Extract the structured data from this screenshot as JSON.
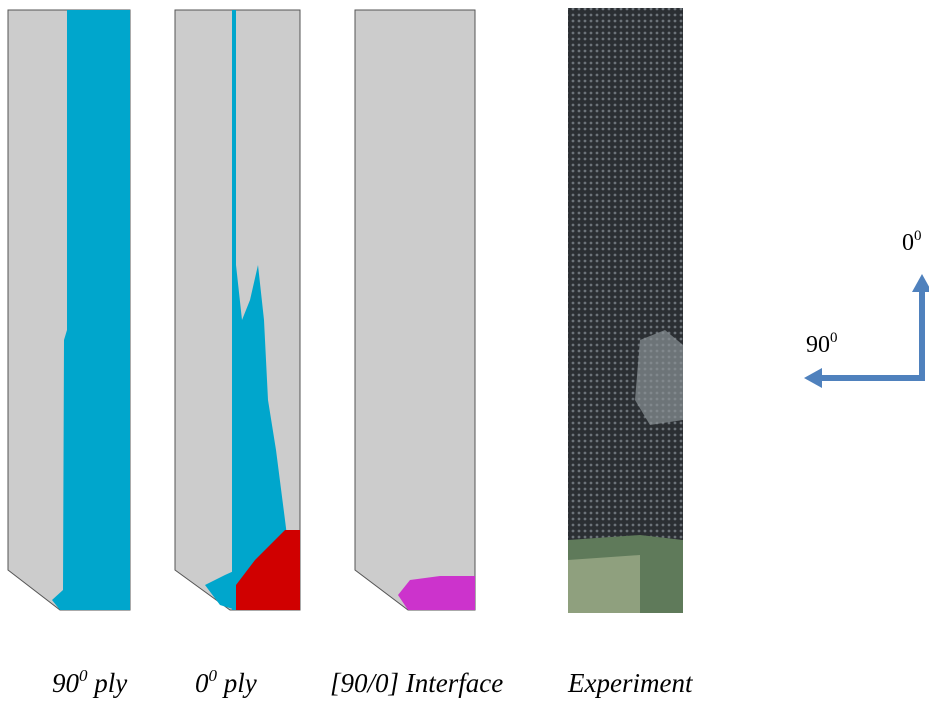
{
  "captions": [
    {
      "base": "90",
      "sup": "0",
      "rest": " ply"
    },
    {
      "base": "0",
      "sup": "0",
      "rest": " ply"
    },
    {
      "text": "[90/0] Interface"
    },
    {
      "text": "Experiment"
    }
  ],
  "axes": {
    "vertical": {
      "base": "0",
      "sup": "0"
    },
    "horizontal": {
      "base": "90",
      "sup": "0"
    }
  }
}
